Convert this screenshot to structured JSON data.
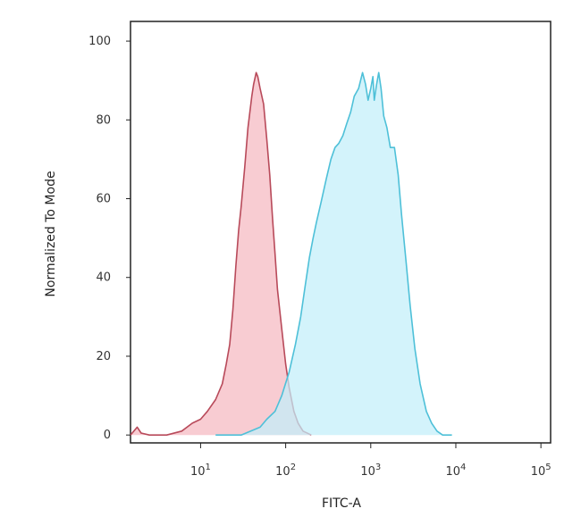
{
  "chart_data": {
    "type": "area",
    "xlabel": "FITC-A",
    "ylabel": "Normalized To Mode",
    "x_scale": "log",
    "xlim": [
      1.5,
      130000
    ],
    "ylim": [
      -2,
      105
    ],
    "y_ticks": [
      0,
      20,
      40,
      60,
      80,
      100
    ],
    "x_ticks": [
      {
        "base": "10",
        "exp": "1",
        "value": 10
      },
      {
        "base": "10",
        "exp": "2",
        "value": 100
      },
      {
        "base": "10",
        "exp": "3",
        "value": 1000
      },
      {
        "base": "10",
        "exp": "4",
        "value": 10000
      },
      {
        "base": "10",
        "exp": "5",
        "value": 100000
      }
    ],
    "grid": false,
    "series": [
      {
        "color": "#b84a5a",
        "fill": "#f5b8c0",
        "points": [
          [
            1.5,
            0
          ],
          [
            1.8,
            2
          ],
          [
            2,
            0.5
          ],
          [
            2.5,
            0
          ],
          [
            4,
            0
          ],
          [
            6,
            1
          ],
          [
            8,
            3
          ],
          [
            10,
            4
          ],
          [
            12,
            6
          ],
          [
            15,
            9
          ],
          [
            18,
            13
          ],
          [
            20,
            18
          ],
          [
            22,
            23
          ],
          [
            24,
            32
          ],
          [
            26,
            43
          ],
          [
            28,
            52
          ],
          [
            30,
            58
          ],
          [
            33,
            68
          ],
          [
            36,
            78
          ],
          [
            40,
            86
          ],
          [
            42,
            89
          ],
          [
            45,
            92
          ],
          [
            47,
            91
          ],
          [
            50,
            88
          ],
          [
            55,
            84
          ],
          [
            60,
            75
          ],
          [
            65,
            66
          ],
          [
            70,
            55
          ],
          [
            75,
            46
          ],
          [
            80,
            37
          ],
          [
            90,
            27
          ],
          [
            100,
            18
          ],
          [
            110,
            12
          ],
          [
            125,
            6
          ],
          [
            140,
            3
          ],
          [
            160,
            1
          ],
          [
            200,
            0
          ]
        ]
      },
      {
        "color": "#4ec0d8",
        "fill": "#c2effa",
        "points": [
          [
            15,
            0
          ],
          [
            30,
            0
          ],
          [
            50,
            2
          ],
          [
            60,
            4
          ],
          [
            75,
            6
          ],
          [
            90,
            10
          ],
          [
            110,
            16
          ],
          [
            130,
            23
          ],
          [
            150,
            30
          ],
          [
            170,
            38
          ],
          [
            190,
            45
          ],
          [
            210,
            50
          ],
          [
            230,
            54
          ],
          [
            260,
            59
          ],
          [
            300,
            65
          ],
          [
            340,
            70
          ],
          [
            380,
            73
          ],
          [
            420,
            74
          ],
          [
            470,
            76
          ],
          [
            520,
            79
          ],
          [
            580,
            82
          ],
          [
            640,
            86
          ],
          [
            720,
            88
          ],
          [
            800,
            92
          ],
          [
            870,
            89
          ],
          [
            930,
            85
          ],
          [
            1000,
            88
          ],
          [
            1060,
            91
          ],
          [
            1100,
            85
          ],
          [
            1170,
            89
          ],
          [
            1240,
            92
          ],
          [
            1320,
            88
          ],
          [
            1420,
            81
          ],
          [
            1550,
            78
          ],
          [
            1700,
            73
          ],
          [
            1900,
            73
          ],
          [
            2100,
            66
          ],
          [
            2300,
            56
          ],
          [
            2600,
            44
          ],
          [
            2900,
            33
          ],
          [
            3300,
            22
          ],
          [
            3800,
            13
          ],
          [
            4500,
            6
          ],
          [
            5200,
            3
          ],
          [
            6000,
            1
          ],
          [
            7000,
            0
          ],
          [
            9000,
            0
          ]
        ]
      }
    ]
  }
}
